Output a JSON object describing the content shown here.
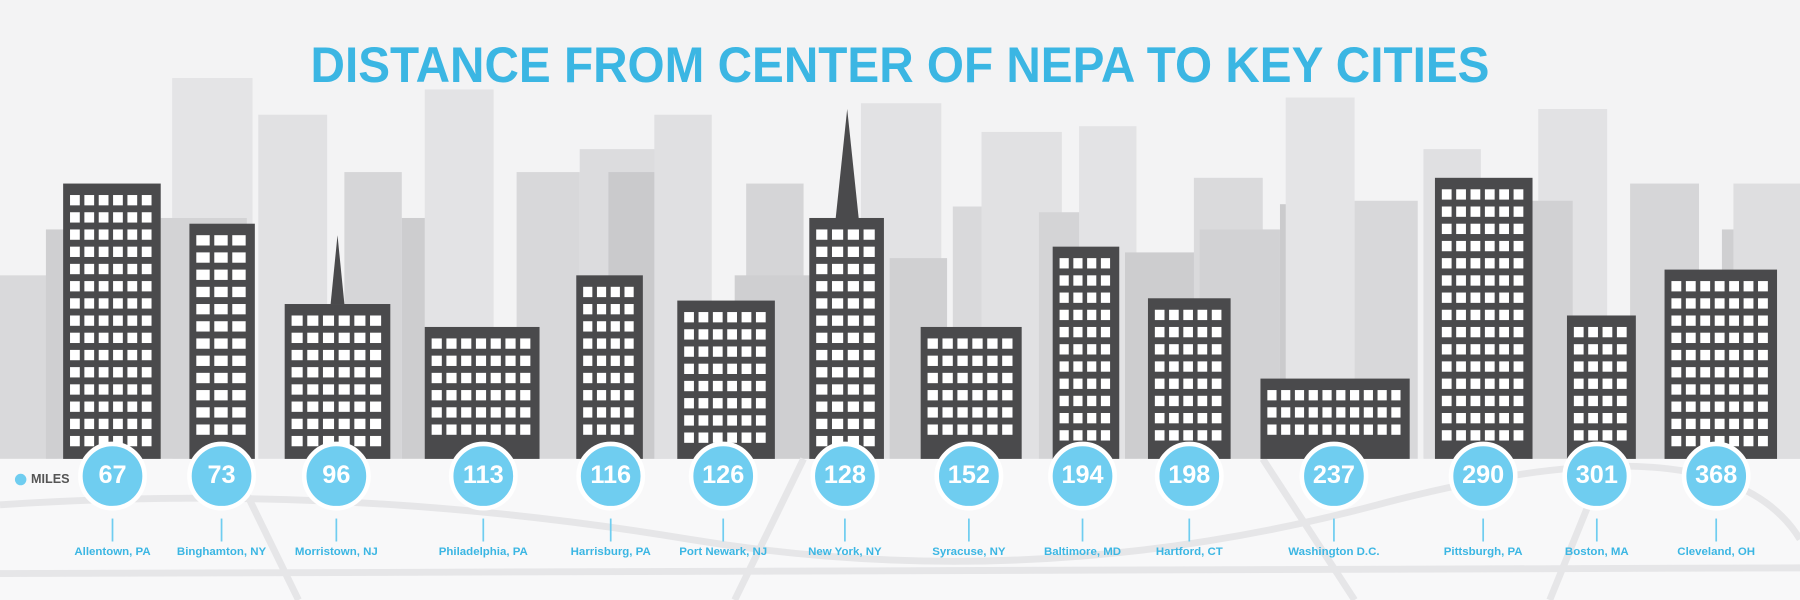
{
  "title": "DISTANCE FROM CENTER OF NEPA TO KEY CITIES",
  "legend": {
    "label": "MILES"
  },
  "cities": [
    {
      "name": "Allentown, PA",
      "miles": "67"
    },
    {
      "name": "Binghamton, NY",
      "miles": "73"
    },
    {
      "name": "Morristown, NJ",
      "miles": "96"
    },
    {
      "name": "Philadelphia, PA",
      "miles": "113"
    },
    {
      "name": "Harrisburg, PA",
      "miles": "116"
    },
    {
      "name": "Port Newark, NJ",
      "miles": "126"
    },
    {
      "name": "New York, NY",
      "miles": "128"
    },
    {
      "name": "Syracuse, NY",
      "miles": "152"
    },
    {
      "name": "Baltimore, MD",
      "miles": "194"
    },
    {
      "name": "Hartford, CT",
      "miles": "198"
    },
    {
      "name": "Washington D.C.",
      "miles": "237"
    },
    {
      "name": "Pittsburgh, PA",
      "miles": "290"
    },
    {
      "name": "Boston, MA",
      "miles": "301"
    },
    {
      "name": "Cleveland, OH",
      "miles": "368"
    }
  ]
}
